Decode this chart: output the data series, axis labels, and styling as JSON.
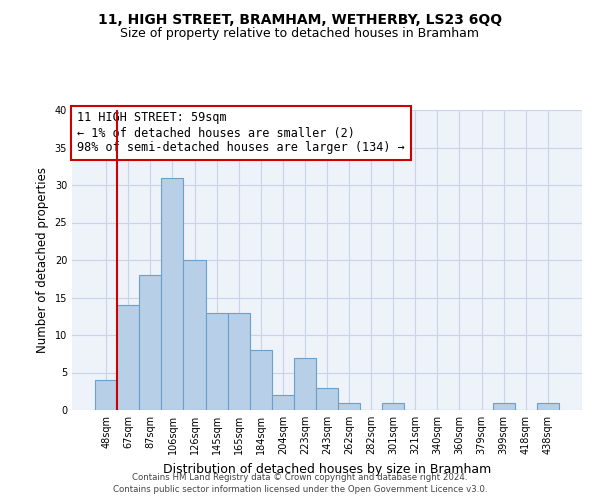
{
  "title": "11, HIGH STREET, BRAMHAM, WETHERBY, LS23 6QQ",
  "subtitle": "Size of property relative to detached houses in Bramham",
  "xlabel": "Distribution of detached houses by size in Bramham",
  "ylabel": "Number of detached properties",
  "bar_labels": [
    "48sqm",
    "67sqm",
    "87sqm",
    "106sqm",
    "126sqm",
    "145sqm",
    "165sqm",
    "184sqm",
    "204sqm",
    "223sqm",
    "243sqm",
    "262sqm",
    "282sqm",
    "301sqm",
    "321sqm",
    "340sqm",
    "360sqm",
    "379sqm",
    "399sqm",
    "418sqm",
    "438sqm"
  ],
  "bar_values": [
    4,
    14,
    18,
    31,
    20,
    13,
    13,
    8,
    2,
    7,
    3,
    1,
    0,
    1,
    0,
    0,
    0,
    0,
    1,
    0,
    1
  ],
  "bar_color": "#b8cfe8",
  "bar_edge_color": "#6aa0cc",
  "highlight_line_color": "#cc0000",
  "annotation_box_color": "#cc0000",
  "annotation_text_line1": "11 HIGH STREET: 59sqm",
  "annotation_text_line2": "← 1% of detached houses are smaller (2)",
  "annotation_text_line3": "98% of semi-detached houses are larger (134) →",
  "annotation_fontsize": 8.5,
  "ylim": [
    0,
    40
  ],
  "yticks": [
    0,
    5,
    10,
    15,
    20,
    25,
    30,
    35,
    40
  ],
  "grid_color": "#c8d4e8",
  "bg_color": "#eef2f9",
  "footer_line1": "Contains HM Land Registry data © Crown copyright and database right 2024.",
  "footer_line2": "Contains public sector information licensed under the Open Government Licence v3.0.",
  "title_fontsize": 10,
  "subtitle_fontsize": 9
}
